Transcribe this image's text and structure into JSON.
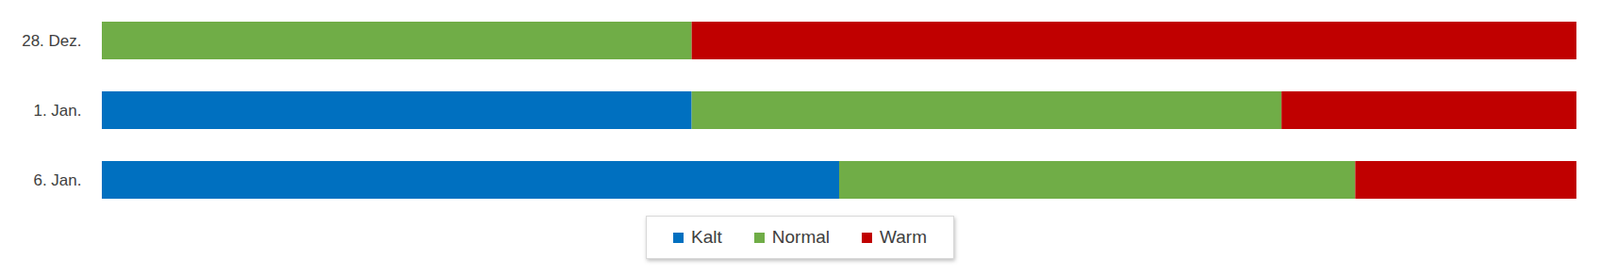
{
  "chart_data": {
    "type": "bar",
    "orientation": "horizontal",
    "stacked": true,
    "categories": [
      "28. Dez.",
      "1. Jan.",
      "6. Jan."
    ],
    "series": [
      {
        "name": "Kalt",
        "color": "#0070c0",
        "values": [
          0,
          40,
          50
        ]
      },
      {
        "name": "Normal",
        "color": "#70ad47",
        "values": [
          40,
          40,
          35
        ]
      },
      {
        "name": "Warm",
        "color": "#c00000",
        "values": [
          60,
          20,
          15
        ]
      }
    ],
    "xlim": [
      0,
      100
    ],
    "grid": false,
    "legend": "bottom",
    "tick_labels": "y",
    "data_labels": false
  }
}
